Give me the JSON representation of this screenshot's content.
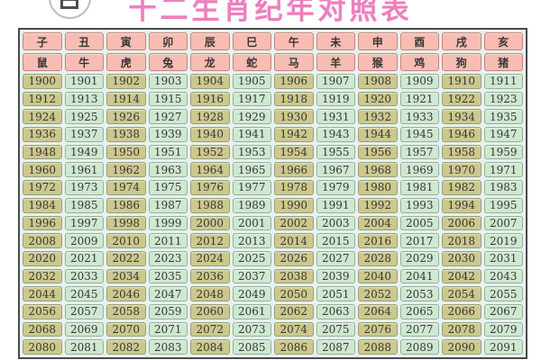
{
  "page": {
    "title": "十二生肖纪年对照表"
  },
  "header": {
    "branches": [
      "子",
      "丑",
      "寅",
      "卯",
      "辰",
      "巳",
      "午",
      "未",
      "申",
      "酉",
      "戌",
      "亥"
    ],
    "animals": [
      "鼠",
      "牛",
      "虎",
      "兔",
      "龙",
      "蛇",
      "马",
      "羊",
      "猴",
      "鸡",
      "狗",
      "猪"
    ]
  },
  "years": {
    "start": 1900,
    "end": 2091,
    "rows": [
      [
        1900,
        1901,
        1902,
        1903,
        1904,
        1905,
        1906,
        1907,
        1908,
        1909,
        1910,
        1911
      ],
      [
        1912,
        1913,
        1914,
        1915,
        1916,
        1917,
        1918,
        1919,
        1920,
        1921,
        1922,
        1923
      ],
      [
        1924,
        1925,
        1926,
        1927,
        1928,
        1929,
        1930,
        1931,
        1932,
        1933,
        1934,
        1935
      ],
      [
        1936,
        1937,
        1938,
        1939,
        1940,
        1941,
        1942,
        1943,
        1944,
        1945,
        1946,
        1947
      ],
      [
        1948,
        1949,
        1950,
        1951,
        1952,
        1953,
        1954,
        1955,
        1956,
        1957,
        1958,
        1959
      ],
      [
        1960,
        1961,
        1962,
        1963,
        1964,
        1965,
        1966,
        1967,
        1968,
        1969,
        1970,
        1971
      ],
      [
        1972,
        1973,
        1974,
        1975,
        1976,
        1977,
        1978,
        1979,
        1980,
        1981,
        1982,
        1983
      ],
      [
        1984,
        1985,
        1986,
        1987,
        1988,
        1989,
        1990,
        1991,
        1992,
        1993,
        1994,
        1995
      ],
      [
        1996,
        1997,
        1998,
        1999,
        2000,
        2001,
        2002,
        2003,
        2004,
        2005,
        2006,
        2007
      ],
      [
        2008,
        2009,
        2010,
        2011,
        2012,
        2013,
        2014,
        2015,
        2016,
        2017,
        2018,
        2019
      ],
      [
        2020,
        2021,
        2022,
        2023,
        2024,
        2025,
        2026,
        2027,
        2028,
        2029,
        2030,
        2031
      ],
      [
        2032,
        2033,
        2034,
        2035,
        2036,
        2037,
        2038,
        2039,
        2040,
        2041,
        2042,
        2043
      ],
      [
        2044,
        2045,
        2046,
        2047,
        2048,
        2049,
        2050,
        2051,
        2052,
        2053,
        2054,
        2055
      ],
      [
        2056,
        2057,
        2058,
        2059,
        2060,
        2061,
        2062,
        2063,
        2064,
        2065,
        2066,
        2067
      ],
      [
        2068,
        2069,
        2070,
        2071,
        2072,
        2073,
        2074,
        2075,
        2076,
        2077,
        2078,
        2079
      ],
      [
        2080,
        2081,
        2082,
        2083,
        2084,
        2085,
        2086,
        2087,
        2088,
        2089,
        2090,
        2091
      ]
    ]
  },
  "colors": {
    "title_pink": "#ee7fbd",
    "header_cell_bg": "#f8bcb3",
    "header_cell_border": "#c4867f",
    "odd_col_bg": "#cdc88e",
    "odd_col_border": "#96a078",
    "even_col_bg": "#cfe8d1",
    "even_col_border": "#95b199",
    "table_gap_bg": "#e7f1ee",
    "table_border": "#4a4a4a"
  }
}
